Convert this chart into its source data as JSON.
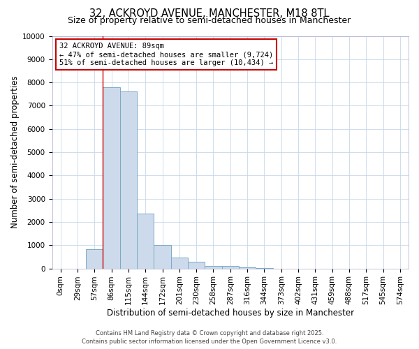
{
  "title": "32, ACKROYD AVENUE, MANCHESTER, M18 8TL",
  "subtitle": "Size of property relative to semi-detached houses in Manchester",
  "xlabel": "Distribution of semi-detached houses by size in Manchester",
  "ylabel": "Number of semi-detached properties",
  "bar_color": "#ccdaeb",
  "bar_edge_color": "#7aaac8",
  "background_color": "#ffffff",
  "grid_color": "#c8d8e8",
  "categories": [
    "0sqm",
    "29sqm",
    "57sqm",
    "86sqm",
    "115sqm",
    "144sqm",
    "172sqm",
    "201sqm",
    "230sqm",
    "258sqm",
    "287sqm",
    "316sqm",
    "344sqm",
    "373sqm",
    "402sqm",
    "431sqm",
    "459sqm",
    "488sqm",
    "517sqm",
    "545sqm",
    "574sqm"
  ],
  "values": [
    0,
    0,
    820,
    7780,
    7600,
    2350,
    1020,
    460,
    300,
    120,
    100,
    50,
    10,
    2,
    0,
    0,
    0,
    0,
    0,
    0,
    0
  ],
  "ylim": [
    0,
    10000
  ],
  "yticks": [
    0,
    1000,
    2000,
    3000,
    4000,
    5000,
    6000,
    7000,
    8000,
    9000,
    10000
  ],
  "vline_x_index": 3,
  "annotation_title": "32 ACKROYD AVENUE: 89sqm",
  "annotation_line1": "← 47% of semi-detached houses are smaller (9,724)",
  "annotation_line2": "51% of semi-detached houses are larger (10,434) →",
  "annotation_color": "#cc0000",
  "vline_color": "#cc0000",
  "footer1": "Contains HM Land Registry data © Crown copyright and database right 2025.",
  "footer2": "Contains public sector information licensed under the Open Government Licence v3.0.",
  "title_fontsize": 10.5,
  "subtitle_fontsize": 9,
  "annotation_fontsize": 7.5,
  "axis_label_fontsize": 8.5,
  "tick_fontsize": 7.5,
  "footer_fontsize": 6
}
